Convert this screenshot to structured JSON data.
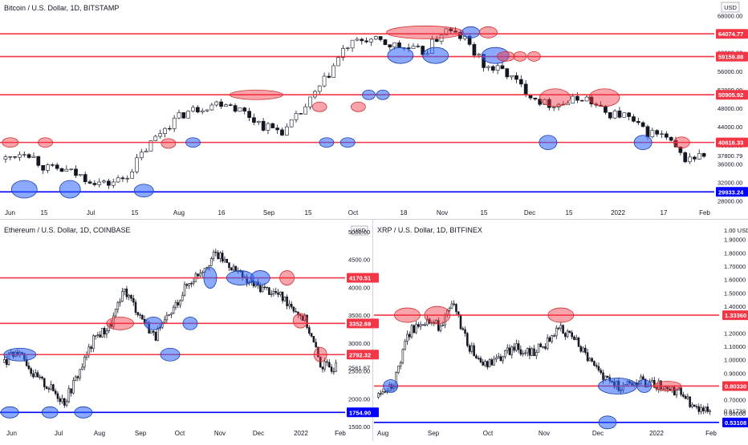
{
  "panels": [
    {
      "id": "btc",
      "title": "Bitcoin / U.S. Dollar, 1D, BITSTAMP",
      "currency": "USD",
      "y_ticks": [
        "68000.00",
        "64000.00",
        "60000.00",
        "56000.00",
        "52000.00",
        "48000.00",
        "44000.00",
        "40000.00",
        "36000.00",
        "32000.00",
        "28000.00"
      ],
      "y_tick_values": [
        68000,
        64000,
        60000,
        56000,
        52000,
        48000,
        44000,
        40000,
        36000,
        32000,
        28000
      ],
      "ylim": [
        26000,
        70000
      ],
      "x_labels": [
        "Jun",
        "15",
        "Jul",
        "15",
        "Aug",
        "16",
        "Sep",
        "15",
        "Oct",
        "18",
        "Nov",
        "15",
        "Dec",
        "15",
        "2022",
        "17",
        "Feb"
      ],
      "levels": [
        {
          "value": 64074.77,
          "label": "64074.77",
          "color": "#f23645"
        },
        {
          "value": 59159.88,
          "label": "59159.88",
          "color": "#f23645"
        },
        {
          "value": 50905.92,
          "label": "50905.92",
          "color": "#f23645"
        },
        {
          "value": 40616.33,
          "label": "40616.33",
          "color": "#f23645"
        },
        {
          "value": 29933.24,
          "label": "29933.24",
          "color": "#0000ff"
        }
      ],
      "last_price": "37800.79"
    },
    {
      "id": "eth",
      "title": "Ethereum / U.S. Dollar, 1D, COINBASE",
      "currency": "USD",
      "y_ticks": [
        "5000.00",
        "4500.00",
        "4000.00",
        "3500.00",
        "3000.00",
        "2500.00",
        "2000.00",
        "1500.00"
      ],
      "y_tick_values": [
        5000,
        4500,
        4000,
        3500,
        3000,
        2500,
        2000,
        1500
      ],
      "ylim": [
        1500,
        5100
      ],
      "x_labels": [
        "Jun",
        "Jul",
        "Aug",
        "Sep",
        "Oct",
        "Nov",
        "Dec",
        "2022",
        "Feb"
      ],
      "levels": [
        {
          "value": 4170.51,
          "label": "4170.51",
          "color": "#f23645"
        },
        {
          "value": 3352.69,
          "label": "3352.69",
          "color": "#f23645"
        },
        {
          "value": 2792.32,
          "label": "2792.32",
          "color": "#f23645"
        },
        {
          "value": 1754.9,
          "label": "1754.90",
          "color": "#0000ff"
        }
      ],
      "last_price": "2561.67"
    },
    {
      "id": "xrp",
      "title": "XRP / U.S. Dollar, 1D, BITFINEX",
      "currency": "USD",
      "y_ticks": [
        "1.90000",
        "1.80000",
        "1.70000",
        "1.60000",
        "1.50000",
        "1.40000",
        "1.20000",
        "1.10000",
        "1.00000",
        "0.90000",
        "0.70000",
        "0.60000"
      ],
      "y_tick_values": [
        1.9,
        1.8,
        1.7,
        1.6,
        1.5,
        1.4,
        1.2,
        1.1,
        1.0,
        0.9,
        0.7,
        0.6
      ],
      "ylim": [
        0.5,
        2.0
      ],
      "x_labels": [
        "Aug",
        "Sep",
        "Oct",
        "Nov",
        "Dec",
        "2022",
        "Feb"
      ],
      "levels": [
        {
          "value": 1.3336,
          "label": "1.33360",
          "color": "#f23645"
        },
        {
          "value": 0.8033,
          "label": "0.80330",
          "color": "#f23645"
        },
        {
          "value": 0.53108,
          "label": "0.53108",
          "color": "#0000ff"
        }
      ],
      "last_price": "0.61739",
      "extra_tag": "1.00 USD"
    }
  ],
  "chart_data": [
    {
      "type": "candlestick",
      "title": "Bitcoin / U.S. Dollar, 1D, BITSTAMP",
      "ylim": [
        26000,
        70000
      ],
      "x": [
        "Jun",
        "15",
        "Jul",
        "15",
        "Aug",
        "16",
        "Sep",
        "15",
        "Oct",
        "18",
        "Nov",
        "15",
        "Dec",
        "15",
        "2022",
        "17",
        "Feb"
      ],
      "close_approx": [
        37000,
        39000,
        35000,
        34500,
        33000,
        31500,
        33000,
        39000,
        44000,
        47000,
        48500,
        49500,
        47000,
        44000,
        43000,
        48000,
        54000,
        61000,
        63000,
        62000,
        61000,
        60000,
        65000,
        63000,
        57000,
        56000,
        52000,
        49000,
        49000,
        50500,
        47000,
        46500,
        43000,
        42000,
        37000,
        37800
      ],
      "levels": [
        64074.77,
        59159.88,
        50905.92,
        40616.33,
        29933.24
      ]
    },
    {
      "type": "candlestick",
      "title": "Ethereum / U.S. Dollar, 1D, COINBASE",
      "ylim": [
        1500,
        5100
      ],
      "x": [
        "Jun",
        "Jul",
        "Aug",
        "Sep",
        "Oct",
        "Nov",
        "Dec",
        "2022",
        "Feb"
      ],
      "close_approx": [
        2650,
        2900,
        2400,
        2200,
        1950,
        2500,
        3100,
        3300,
        3950,
        3500,
        3100,
        3500,
        4000,
        4300,
        4600,
        4400,
        4100,
        4000,
        3900,
        3700,
        3400,
        2600,
        2561
      ],
      "levels": [
        4170.51,
        3352.69,
        2792.32,
        1754.9
      ]
    },
    {
      "type": "candlestick",
      "title": "XRP / U.S. Dollar, 1D, BITFINEX",
      "ylim": [
        0.5,
        2.0
      ],
      "x": [
        "Aug",
        "Sep",
        "Oct",
        "Nov",
        "Dec",
        "2022",
        "Feb"
      ],
      "close_approx": [
        0.72,
        0.8,
        1.2,
        1.3,
        1.25,
        1.4,
        1.1,
        0.95,
        1.0,
        1.1,
        1.05,
        1.1,
        1.25,
        1.15,
        1.0,
        0.85,
        0.8,
        0.85,
        0.82,
        0.8,
        0.75,
        0.65,
        0.617
      ],
      "levels": [
        1.3336,
        0.8033,
        0.53108
      ]
    }
  ]
}
